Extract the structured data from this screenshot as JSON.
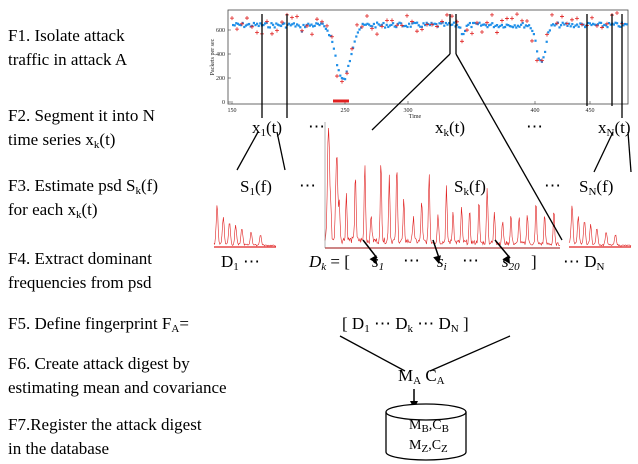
{
  "steps": {
    "f1": {
      "line1": "F1. Isolate attack",
      "line2": "traffic in attack A"
    },
    "f2": {
      "line1": "F2. Segment it into N",
      "line2_prefix": "time series x",
      "line2_sub": "k",
      "line2_suffix": "(t)"
    },
    "f3": {
      "line1_prefix": "F3. Estimate psd S",
      "line1_sub": "k",
      "line1_suffix": "(f)",
      "line2_prefix": "for each x",
      "line2_sub": "k",
      "line2_suffix": "(t)"
    },
    "f4": {
      "line1": "F4. Extract dominant",
      "line2": "frequencies from psd"
    },
    "f5": {
      "prefix": "F5. Define fingerprint F",
      "sub": "A",
      "suffix": "="
    },
    "f6": {
      "line1": "F6. Create attack digest by",
      "line2": "estimating mean and covariance"
    },
    "f7": {
      "line1": "F7.Register the attack digest",
      "line2": "in the database"
    }
  },
  "traffic_plot": {
    "ylabel": "Packets per sec",
    "xlabel": "Time",
    "y_ticks": [
      "600",
      "400",
      "200",
      "0"
    ],
    "x_ticks": [
      "150",
      "250",
      "300",
      "400",
      "450"
    ]
  },
  "series": {
    "x1": {
      "base": "x",
      "sub": "1",
      "suffix": "(t)"
    },
    "xk": {
      "base": "x",
      "sub": "k",
      "suffix": "(t)"
    },
    "xN": {
      "base": "x",
      "sub": "N",
      "suffix": "(t)"
    },
    "dots": "⋯"
  },
  "psd": {
    "s1": {
      "base": "S",
      "sub": "1",
      "suffix": "(f)"
    },
    "sk": {
      "base": "S",
      "sub": "k",
      "suffix": "(f)"
    },
    "sN": {
      "base": "S",
      "sub": "N",
      "suffix": "(f)"
    },
    "dots": "⋯"
  },
  "dominant": {
    "d1": {
      "base": "D",
      "sub": "1",
      "suffix": " ⋯"
    },
    "dk_left": {
      "base": "D",
      "sub": "k",
      "suffix": " = [ "
    },
    "s1": {
      "base": "s",
      "sub": "1"
    },
    "si": {
      "base": "s",
      "sub": "i"
    },
    "s20": {
      "base": "s",
      "sub": "20"
    },
    "close": "]",
    "dots": "⋯",
    "dN": {
      "prefix": "⋯ ",
      "base": "D",
      "sub": "N"
    }
  },
  "fingerprint": {
    "open": "[ ",
    "d1_base": "D",
    "d1_sub": "1",
    "mid1": " ⋯ ",
    "dk_base": "D",
    "dk_sub": "k",
    "mid2": " ⋯ ",
    "dn_base": "D",
    "dn_sub": "N",
    "close": " ]"
  },
  "digest": {
    "m_base": "M",
    "m_sub": "A",
    "c_base": "C",
    "c_sub": "A"
  },
  "database": {
    "row1": {
      "m_base": "M",
      "m_sub": "B",
      "sep": ",",
      "c_base": "C",
      "c_sub": "B"
    },
    "row2": {
      "m_base": "M",
      "m_sub": "Z",
      "sep": ",",
      "c_base": "C",
      "c_sub": "Z"
    }
  },
  "colors": {
    "trace": "#e02020",
    "points": "#1f8fe8",
    "lines": "#000000"
  }
}
